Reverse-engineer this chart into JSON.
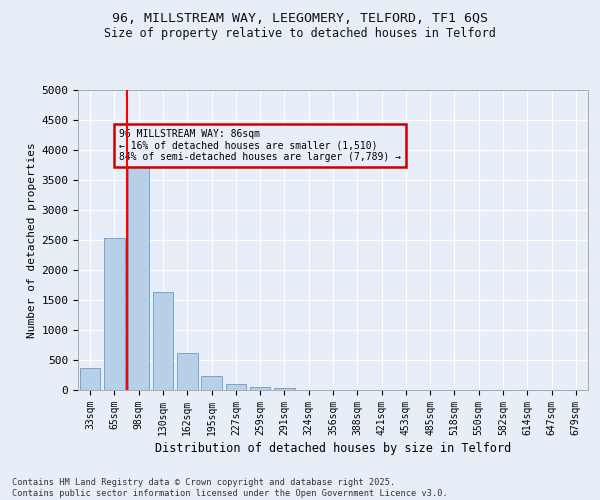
{
  "title_line1": "96, MILLSTREAM WAY, LEEGOMERY, TELFORD, TF1 6QS",
  "title_line2": "Size of property relative to detached houses in Telford",
  "xlabel": "Distribution of detached houses by size in Telford",
  "ylabel": "Number of detached properties",
  "categories": [
    "33sqm",
    "65sqm",
    "98sqm",
    "130sqm",
    "162sqm",
    "195sqm",
    "227sqm",
    "259sqm",
    "291sqm",
    "324sqm",
    "356sqm",
    "388sqm",
    "421sqm",
    "453sqm",
    "485sqm",
    "518sqm",
    "550sqm",
    "582sqm",
    "614sqm",
    "647sqm",
    "679sqm"
  ],
  "values": [
    370,
    2540,
    3750,
    1640,
    620,
    230,
    100,
    45,
    30,
    0,
    0,
    0,
    0,
    0,
    0,
    0,
    0,
    0,
    0,
    0,
    0
  ],
  "bar_color": "#b8cfe8",
  "bar_edge_color": "#6699cc",
  "vline_x": 1.5,
  "vline_color": "red",
  "ylim": [
    0,
    5000
  ],
  "yticks": [
    0,
    500,
    1000,
    1500,
    2000,
    2500,
    3000,
    3500,
    4000,
    4500,
    5000
  ],
  "annotation_text": "96 MILLSTREAM WAY: 86sqm\n← 16% of detached houses are smaller (1,510)\n84% of semi-detached houses are larger (7,789) →",
  "annotation_box_edgecolor": "#cc0000",
  "footer_line1": "Contains HM Land Registry data © Crown copyright and database right 2025.",
  "footer_line2": "Contains public sector information licensed under the Open Government Licence v3.0.",
  "bg_color": "#e8eef8",
  "grid_color": "#ffffff",
  "font_color": "#111111"
}
